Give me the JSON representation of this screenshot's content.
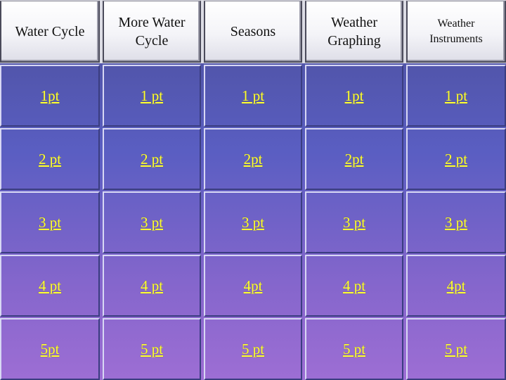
{
  "categories": [
    {
      "label": "Water Cycle",
      "small": false
    },
    {
      "label": "More Water Cycle",
      "small": false
    },
    {
      "label": "Seasons",
      "small": false
    },
    {
      "label": "Weather Graphing",
      "small": false
    },
    {
      "label": "Weather Instruments",
      "small": true
    }
  ],
  "rows": [
    [
      "1pt",
      "1 pt",
      "1 pt",
      "1pt",
      "1 pt"
    ],
    [
      "2 pt",
      "2 pt",
      "2pt",
      "2pt",
      "2 pt"
    ],
    [
      "3 pt",
      "3 pt",
      "3 pt",
      "3 pt",
      "3 pt"
    ],
    [
      "4 pt",
      "4 pt",
      "4pt",
      "4 pt",
      "4pt"
    ],
    [
      "5pt",
      "5 pt",
      "5 pt",
      "5 pt",
      "5 pt"
    ]
  ],
  "colors": {
    "value_text": "#ffff33",
    "board_top": "#4b4f9a",
    "board_bottom": "#9d6ed4"
  }
}
